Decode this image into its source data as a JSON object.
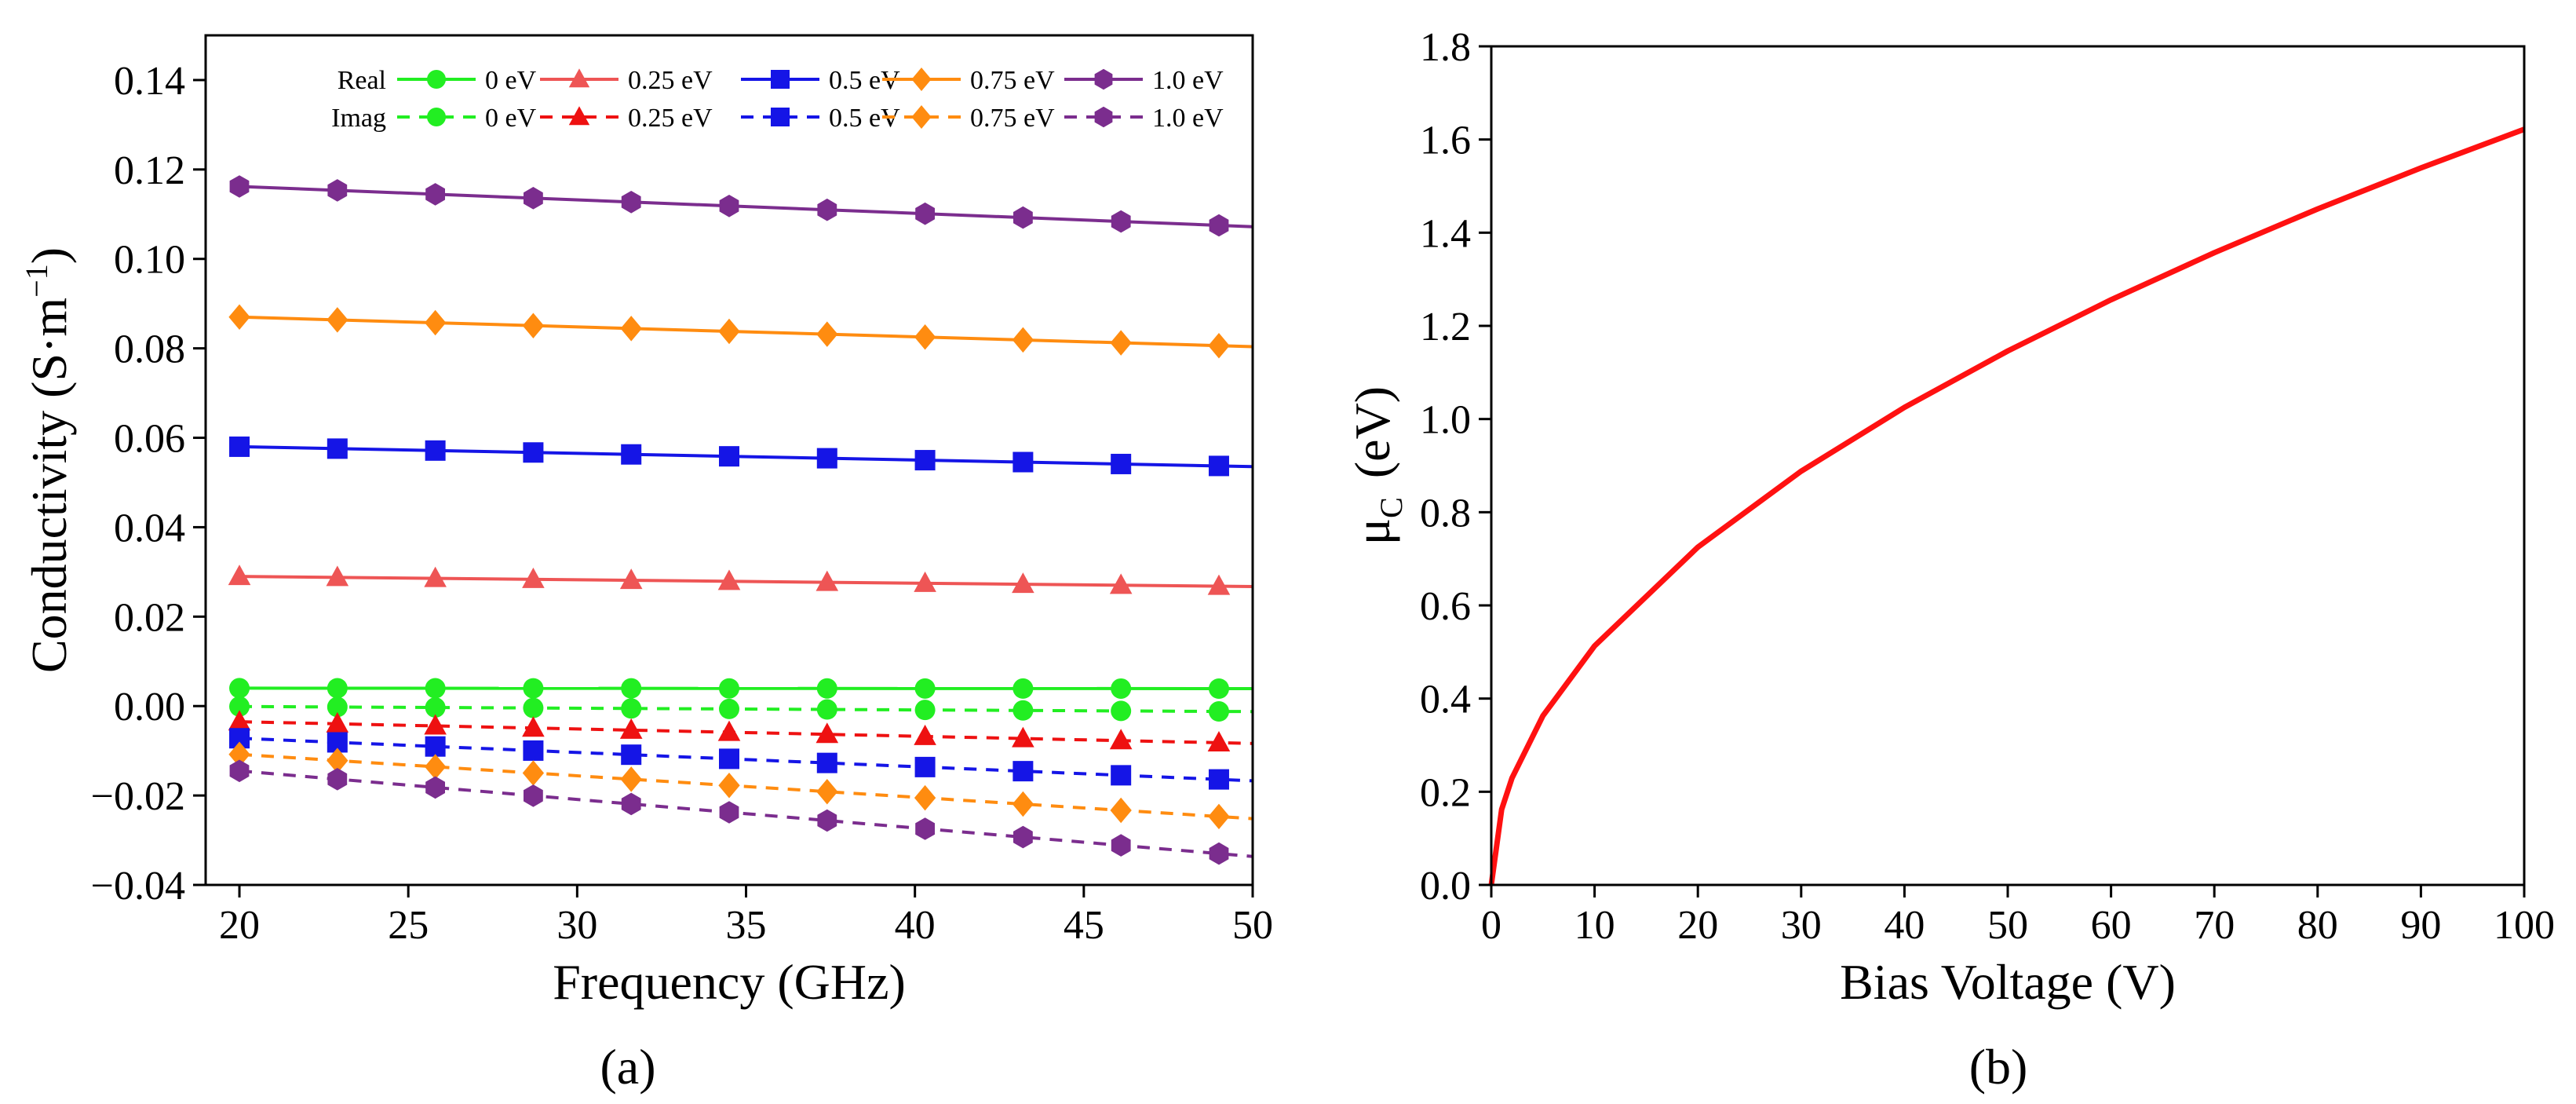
{
  "chart_data": [
    {
      "type": "line",
      "panel_label": "(a)",
      "xlabel": "Frequency (GHz)",
      "ylabel_main": "Conductivity (S·m",
      "ylabel_sup": "−1",
      "ylabel_close": ")",
      "xlim": [
        19,
        50
      ],
      "ylim": [
        -0.04,
        0.15
      ],
      "xticks": [
        20,
        25,
        30,
        35,
        40,
        45,
        50
      ],
      "xtick_labels": [
        "20",
        "25",
        "30",
        "35",
        "40",
        "45",
        "50"
      ],
      "yticks": [
        -0.04,
        -0.02,
        0.0,
        0.02,
        0.04,
        0.06,
        0.08,
        0.1,
        0.12,
        0.14
      ],
      "ytick_labels": [
        "−0.04",
        "−0.02",
        "0.00",
        "0.02",
        "0.04",
        "0.06",
        "0.08",
        "0.10",
        "0.12",
        "0.14"
      ],
      "x": [
        20,
        22.9,
        25.8,
        28.7,
        31.6,
        34.5,
        37.4,
        40.3,
        43.2,
        46.1,
        49
      ],
      "legend": {
        "placement": "top",
        "row_labels": [
          "Real",
          "Imag"
        ]
      },
      "series": [
        {
          "name": "0 eV",
          "part": "Real",
          "color": "#22ee22",
          "marker": "circle",
          "dash": false,
          "start": 0.004,
          "end": 0.0039
        },
        {
          "name": "0.25 eV",
          "part": "Real",
          "color": "#ee5555",
          "marker": "triangle",
          "dash": false,
          "start": 0.029,
          "end": 0.0268
        },
        {
          "name": "0.5 eV",
          "part": "Real",
          "color": "#1515e6",
          "marker": "square",
          "dash": false,
          "start": 0.058,
          "end": 0.0537
        },
        {
          "name": "0.75 eV",
          "part": "Real",
          "color": "#ff8c10",
          "marker": "diamond",
          "dash": false,
          "start": 0.087,
          "end": 0.0806
        },
        {
          "name": "1.0 eV",
          "part": "Real",
          "color": "#7b2d8e",
          "marker": "hexagon",
          "dash": false,
          "start": 0.1162,
          "end": 0.1075
        },
        {
          "name": "0 eV",
          "part": "Imag",
          "color": "#22ee22",
          "marker": "circle",
          "dash": true,
          "start": -0.0001,
          "end": -0.0012
        },
        {
          "name": "0.25 eV",
          "part": "Imag",
          "color": "#ee1111",
          "marker": "triangle",
          "dash": true,
          "start": -0.0035,
          "end": -0.0082
        },
        {
          "name": "0.5 eV",
          "part": "Imag",
          "color": "#1515e6",
          "marker": "square",
          "dash": true,
          "start": -0.0072,
          "end": -0.0164
        },
        {
          "name": "0.75 eV",
          "part": "Imag",
          "color": "#ff8c10",
          "marker": "diamond",
          "dash": true,
          "start": -0.0108,
          "end": -0.0247
        },
        {
          "name": "1.0 eV",
          "part": "Imag",
          "color": "#7b2d8e",
          "marker": "hexagon",
          "dash": true,
          "start": -0.0145,
          "end": -0.033
        }
      ]
    },
    {
      "type": "line",
      "panel_label": "(b)",
      "xlabel": "Bias Voltage (V)",
      "ylabel_main": "μ",
      "ylabel_sub": "C",
      "ylabel_unit": "(eV)",
      "xlim": [
        0,
        100
      ],
      "ylim": [
        0,
        1.8
      ],
      "xticks": [
        0,
        10,
        20,
        30,
        40,
        50,
        60,
        70,
        80,
        90,
        100
      ],
      "xtick_labels": [
        "0",
        "10",
        "20",
        "30",
        "40",
        "50",
        "60",
        "70",
        "80",
        "90",
        "100"
      ],
      "yticks": [
        0,
        0.2,
        0.4,
        0.6,
        0.8,
        1.0,
        1.2,
        1.4,
        1.6,
        1.8
      ],
      "ytick_labels": [
        "0.0",
        "0.2",
        "0.4",
        "0.6",
        "0.8",
        "1.0",
        "1.2",
        "1.4",
        "1.6",
        "1.8"
      ],
      "series": [
        {
          "name": "μC",
          "color": "#ff1111",
          "x": [
            0,
            1,
            2,
            5,
            10,
            20,
            30,
            40,
            50,
            60,
            70,
            80,
            90,
            100
          ],
          "y": [
            0,
            0.162,
            0.229,
            0.363,
            0.513,
            0.725,
            0.888,
            1.025,
            1.146,
            1.256,
            1.357,
            1.451,
            1.539,
            1.622
          ]
        }
      ]
    }
  ]
}
